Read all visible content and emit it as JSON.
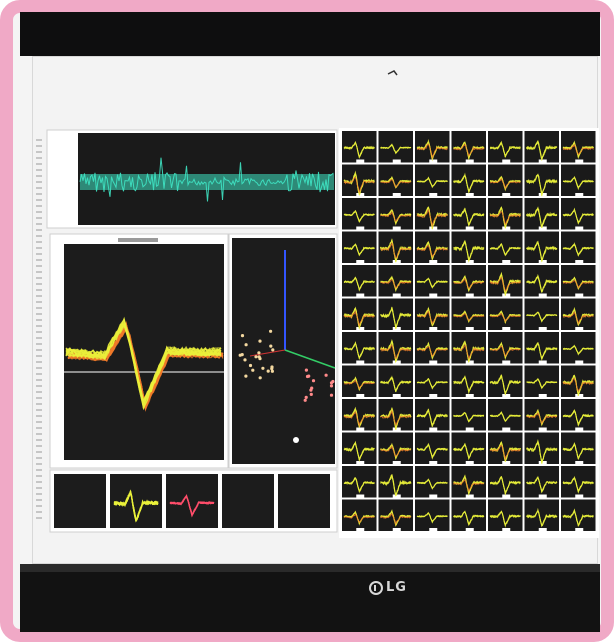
{
  "monitor": {
    "brand": "LG",
    "frame_color": "#f0a9c6",
    "screen_color": "#f3f3f3"
  },
  "waveform_colors": {
    "primary": "#e9f03a",
    "secondary": "#f07a2a",
    "trace": "#3fe6c4",
    "baseline": "#ffffff",
    "axis_blue": "#3355ff",
    "axis_green": "#33cc66"
  },
  "grid": {
    "rows": 12,
    "cols": 7
  }
}
